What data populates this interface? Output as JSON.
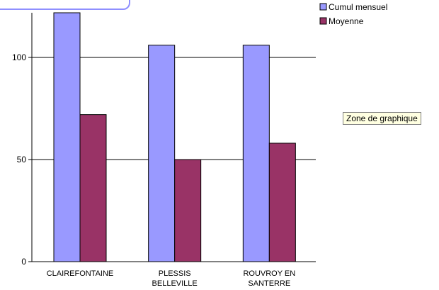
{
  "chart_data": {
    "type": "bar",
    "categories": [
      [
        "CLAIREFONTAINE"
      ],
      [
        "PLESSIS",
        "BELLEVILLE"
      ],
      [
        "ROUVROY EN",
        "SANTERRE"
      ]
    ],
    "series": [
      {
        "name": "Cumul mensuel",
        "color": "#9999ff",
        "values": [
          132,
          106,
          106
        ]
      },
      {
        "name": "Moyenne",
        "color": "#993366",
        "values": [
          72,
          50,
          58
        ]
      }
    ],
    "yticks": [
      0,
      50,
      100
    ],
    "ylim": [
      0,
      120
    ],
    "grid": true,
    "legend_position": "top-right"
  },
  "tooltip": {
    "text": "Zone de graphique"
  }
}
